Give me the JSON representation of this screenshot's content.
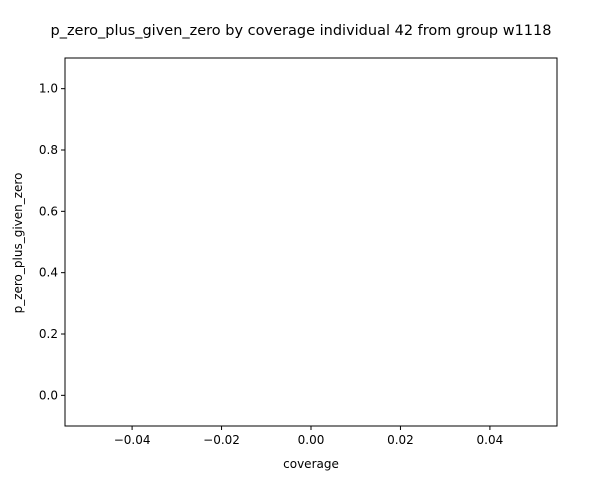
{
  "chart_data": {
    "type": "scatter",
    "title": "p_zero_plus_given_zero by coverage individual 42 from group w1118",
    "xlabel": "coverage",
    "ylabel": "p_zero_plus_given_zero",
    "xlim": [
      -0.055,
      0.055
    ],
    "ylim": [
      -0.1,
      1.1
    ],
    "x_ticks": [
      -0.04,
      -0.02,
      0.0,
      0.02,
      0.04
    ],
    "x_tick_labels": [
      "−0.04",
      "−0.02",
      "0.00",
      "0.02",
      "0.04"
    ],
    "y_ticks": [
      0.0,
      0.2,
      0.4,
      0.6,
      0.8,
      1.0
    ],
    "y_tick_labels": [
      "0.0",
      "0.2",
      "0.4",
      "0.6",
      "0.8",
      "1.0"
    ],
    "x": [],
    "y": [],
    "grid": false,
    "legend": "none"
  }
}
